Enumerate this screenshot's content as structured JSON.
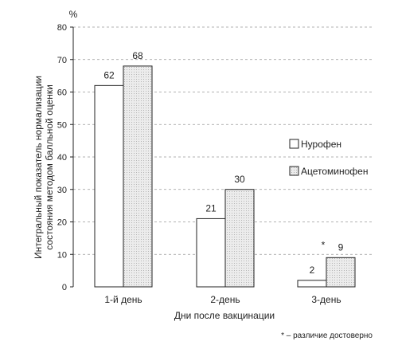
{
  "chart_data": {
    "type": "bar",
    "unit_label": "%",
    "ylabel_lines": [
      "Интегральный показатель нормализации",
      "состояния методом балльной оценки"
    ],
    "xlabel": "Дни после вакцинации",
    "categories": [
      "1-й день",
      "2-день",
      "3-день"
    ],
    "series": [
      {
        "name": "Нурофен",
        "values": [
          62,
          21,
          2
        ],
        "color": "#ffffff"
      },
      {
        "name": "Ацетоминофен",
        "values": [
          68,
          30,
          9
        ],
        "color": "#e6e6e6"
      }
    ],
    "annotations": [
      {
        "category_index": 2,
        "series_index": 1,
        "text": "*"
      }
    ],
    "ylim": [
      0,
      80
    ],
    "yticks": [
      0,
      10,
      20,
      30,
      40,
      50,
      60,
      70,
      80
    ],
    "grid": true,
    "legend_position": "right",
    "footnote": "* – различие достоверно"
  }
}
